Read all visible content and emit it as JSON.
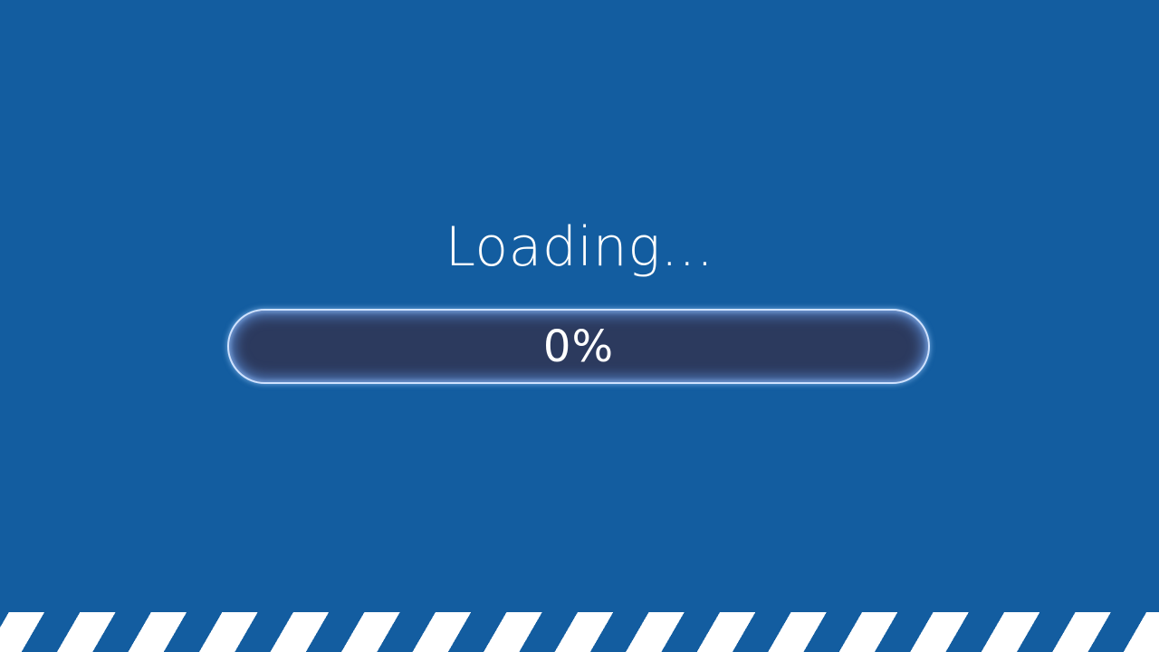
{
  "screen": {
    "title": "Loading...",
    "background_color": "#135da0"
  },
  "progress": {
    "value_fraction": 0.0,
    "label": "0%",
    "track_color": "#2c3a5e",
    "border_color": "#cfe2ff"
  },
  "footer": {
    "stripe_colors": [
      "#ffffff",
      "#135da0"
    ]
  }
}
